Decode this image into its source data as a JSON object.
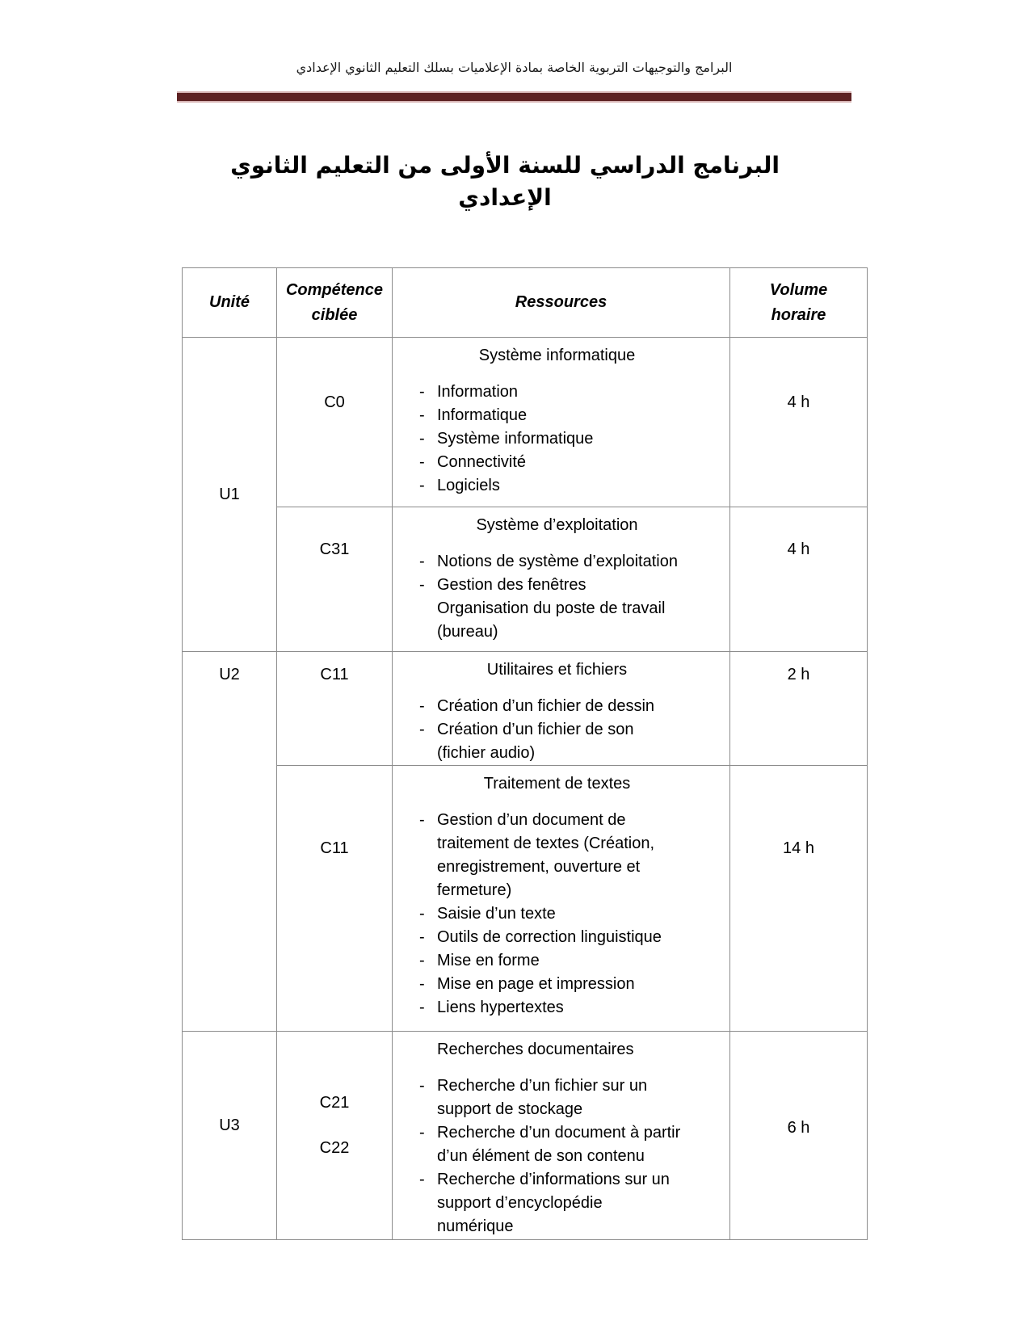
{
  "page": {
    "header_note_ar": "البرامج والتوجيهات التربوية الخاصة بمادة الإعلاميات بسلك التعليم الثانوي الإعدادي",
    "title_ar": "البرنامج الدراسي للسنة الأولى من التعليم الثانوي الإعدادي",
    "accent_color": "#5d2122",
    "table_border_color": "#8c8c8c"
  },
  "table": {
    "headers": {
      "unit": "Unité",
      "competence": "Compétence\nciblée",
      "resources": "Ressources",
      "volume": "Volume\nhoraire"
    },
    "sections": [
      {
        "unit": "U1",
        "subrows": [
          {
            "competence": "C0",
            "volume": "4 h",
            "res": {
              "title": "Système informatique",
              "items": [
                {
                  "marker": "-",
                  "text": "Information"
                },
                {
                  "marker": "-",
                  "text": "Informatique"
                },
                {
                  "marker": "-",
                  "text": "Système informatique"
                },
                {
                  "marker": "-",
                  "text": "Connectivité"
                },
                {
                  "marker": "-",
                  "text": "Logiciels"
                }
              ]
            }
          },
          {
            "competence": "C31",
            "volume": "4 h",
            "res": {
              "title": "Système d’exploitation",
              "items": [
                {
                  "marker": "-",
                  "text": "Notions de système d’exploitation"
                },
                {
                  "marker": "-",
                  "text": "Gestion des fenêtres"
                },
                {
                  "marker": "",
                  "text": "Organisation du poste de travail\n(bureau)"
                }
              ]
            }
          }
        ]
      },
      {
        "unit": "U2",
        "subrows": [
          {
            "competence": "C11",
            "volume": "2 h",
            "res": {
              "title": "Utilitaires et fichiers",
              "items": [
                {
                  "marker": "-",
                  "text": "Création d’un fichier de dessin"
                },
                {
                  "marker": "-",
                  "text": "Création d’un fichier de son\n(fichier audio)"
                }
              ]
            }
          },
          {
            "competence": "C11",
            "volume": "14 h",
            "res": {
              "title": "Traitement de textes",
              "items": [
                {
                  "marker": "-",
                  "text": "Gestion d’un document de\ntraitement de textes (Création,\nenregistrement, ouverture et\nfermeture)"
                },
                {
                  "marker": "-",
                  "text": "Saisie d’un texte"
                },
                {
                  "marker": "-",
                  "text": "Outils de correction linguistique"
                },
                {
                  "marker": "-",
                  "text": "Mise en forme"
                },
                {
                  "marker": "-",
                  "text": "Mise en page et impression"
                },
                {
                  "marker": "-",
                  "text": "Liens hypertextes"
                }
              ]
            }
          }
        ]
      },
      {
        "unit": "U3",
        "subrows": [
          {
            "competence": "C21",
            "competence2": "C22",
            "volume": "6 h",
            "res": {
              "title": "Recherches documentaires",
              "items": [
                {
                  "marker": "-",
                  "text": "Recherche d’un fichier sur un\nsupport de stockage"
                },
                {
                  "marker": "-",
                  "text": "Recherche d’un document à partir\nd’un élément de son contenu"
                },
                {
                  "marker": "-",
                  "text": "Recherche d’informations sur un\nsupport d’encyclopédie\nnumérique"
                }
              ]
            }
          }
        ]
      }
    ]
  }
}
